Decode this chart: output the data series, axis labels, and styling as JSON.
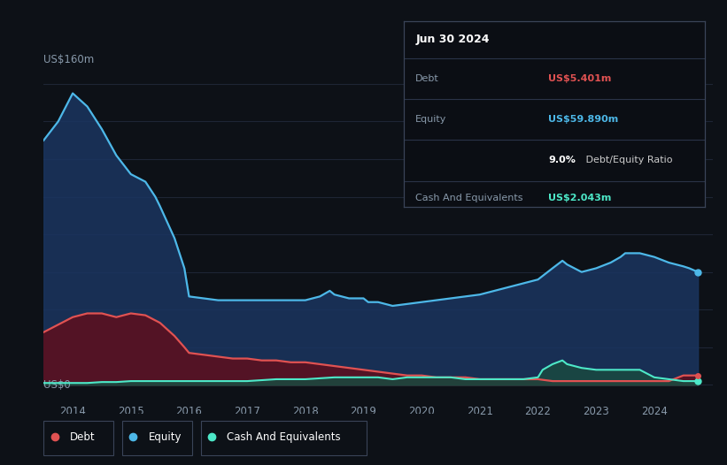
{
  "bg_color": "#0d1117",
  "plot_bg_color": "#0d1117",
  "grid_color": "#1e2535",
  "debt_color": "#e05252",
  "equity_color": "#4db8e8",
  "cash_color": "#4de8c8",
  "debt_fill": "#5a1020",
  "equity_fill": "#1a3560",
  "cash_fill": "#1a4a40",
  "xlim_start": 2013.5,
  "xlim_end": 2025.0,
  "ylim_min": -8,
  "ylim_max": 170,
  "xticks": [
    2014,
    2015,
    2016,
    2017,
    2018,
    2019,
    2020,
    2021,
    2022,
    2023,
    2024
  ],
  "ylabel_160": "US$160m",
  "ylabel_0": "US$0",
  "infobox": {
    "date": "Jun 30 2024",
    "debt_label": "Debt",
    "debt_value": "US$5.401m",
    "equity_label": "Equity",
    "equity_value": "US$59.890m",
    "ratio_bold": "9.0%",
    "ratio_rest": " Debt/Equity Ratio",
    "cash_label": "Cash And Equivalents",
    "cash_value": "US$2.043m"
  },
  "equity_x": [
    2013.5,
    2013.75,
    2014.0,
    2014.25,
    2014.5,
    2014.75,
    2015.0,
    2015.25,
    2015.42,
    2015.5,
    2015.75,
    2015.92,
    2016.0,
    2016.25,
    2016.5,
    2016.75,
    2017.0,
    2017.25,
    2017.5,
    2017.75,
    2018.0,
    2018.25,
    2018.42,
    2018.5,
    2018.75,
    2019.0,
    2019.08,
    2019.25,
    2019.5,
    2019.75,
    2020.0,
    2020.25,
    2020.5,
    2020.75,
    2021.0,
    2021.25,
    2021.5,
    2021.75,
    2022.0,
    2022.25,
    2022.42,
    2022.5,
    2022.75,
    2023.0,
    2023.25,
    2023.42,
    2023.5,
    2023.75,
    2024.0,
    2024.25,
    2024.5,
    2024.6,
    2024.75
  ],
  "equity_y": [
    130,
    140,
    155,
    148,
    136,
    122,
    112,
    108,
    100,
    95,
    78,
    62,
    47,
    46,
    45,
    45,
    45,
    45,
    45,
    45,
    45,
    47,
    50,
    48,
    46,
    46,
    44,
    44,
    42,
    43,
    44,
    45,
    46,
    47,
    48,
    50,
    52,
    54,
    56,
    62,
    66,
    64,
    60,
    62,
    65,
    68,
    70,
    70,
    68,
    65,
    63,
    62,
    60
  ],
  "debt_x": [
    2013.5,
    2013.75,
    2014.0,
    2014.25,
    2014.5,
    2014.75,
    2015.0,
    2015.25,
    2015.5,
    2015.75,
    2015.92,
    2016.0,
    2016.25,
    2016.5,
    2016.75,
    2017.0,
    2017.25,
    2017.5,
    2017.75,
    2018.0,
    2018.25,
    2018.5,
    2018.75,
    2019.0,
    2019.25,
    2019.5,
    2019.75,
    2020.0,
    2020.25,
    2020.5,
    2020.75,
    2021.0,
    2021.25,
    2021.5,
    2021.75,
    2022.0,
    2022.25,
    2022.5,
    2022.75,
    2023.0,
    2023.25,
    2023.5,
    2023.75,
    2024.0,
    2024.25,
    2024.5,
    2024.75
  ],
  "debt_y": [
    28,
    32,
    36,
    38,
    38,
    36,
    38,
    37,
    33,
    26,
    20,
    17,
    16,
    15,
    14,
    14,
    13,
    13,
    12,
    12,
    11,
    10,
    9,
    8,
    7,
    6,
    5,
    5,
    4,
    4,
    4,
    3,
    3,
    3,
    3,
    3,
    2,
    2,
    2,
    2,
    2,
    2,
    2,
    2,
    2,
    5,
    5
  ],
  "cash_x": [
    2013.5,
    2013.75,
    2014.0,
    2014.25,
    2014.5,
    2014.75,
    2015.0,
    2015.25,
    2015.5,
    2015.75,
    2016.0,
    2016.25,
    2016.5,
    2016.75,
    2017.0,
    2017.25,
    2017.5,
    2017.75,
    2018.0,
    2018.25,
    2018.5,
    2018.75,
    2019.0,
    2019.25,
    2019.5,
    2019.5,
    2019.75,
    2020.0,
    2020.25,
    2020.5,
    2020.75,
    2021.0,
    2021.25,
    2021.5,
    2021.75,
    2022.0,
    2022.08,
    2022.25,
    2022.42,
    2022.5,
    2022.75,
    2023.0,
    2023.25,
    2023.5,
    2023.75,
    2024.0,
    2024.25,
    2024.5,
    2024.75
  ],
  "cash_y": [
    1,
    1,
    1,
    1,
    1.5,
    1.5,
    2,
    2,
    2,
    2,
    2,
    2,
    2,
    2,
    2,
    2.5,
    3,
    3,
    3,
    3.5,
    4,
    4,
    4,
    4,
    3,
    3,
    4,
    4,
    4,
    4,
    3,
    3,
    3,
    3,
    3,
    4,
    8,
    11,
    13,
    11,
    9,
    8,
    8,
    8,
    8,
    4,
    3,
    2,
    2
  ]
}
